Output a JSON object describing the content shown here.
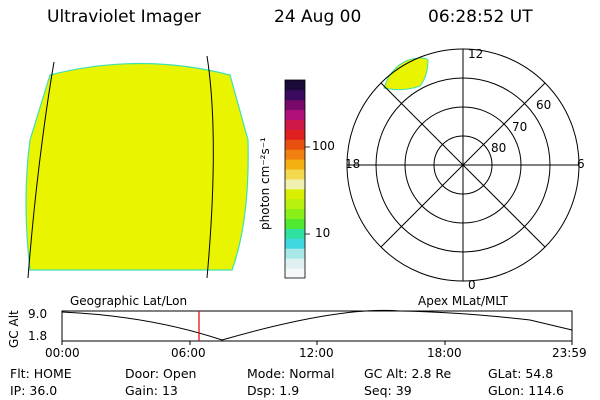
{
  "header": {
    "instrument": "Ultraviolet Imager",
    "date": "24 Aug 00",
    "time": "06:28:52 UT"
  },
  "colorbar": {
    "unit_label": "photon cm⁻²s⁻¹",
    "tick_labels": [
      "100",
      "10"
    ],
    "colors": [
      "#1a0a3a",
      "#3a0a5e",
      "#7a0a6a",
      "#b0107a",
      "#d01848",
      "#e02020",
      "#e85010",
      "#f08010",
      "#f4b010",
      "#f4d850",
      "#f0f0b0",
      "#d8f000",
      "#b8f010",
      "#88f018",
      "#50e830",
      "#30e0a0",
      "#40d8e0",
      "#a8e8e8",
      "#e0f0f0",
      "#f4f8f8"
    ]
  },
  "labels": {
    "geo_title": "Geographic Lat/Lon",
    "apex_title": "Apex MLat/MLT"
  },
  "polar": {
    "mlt_labels": [
      "12",
      "18",
      "6",
      "0"
    ],
    "lat_labels": [
      "60",
      "70",
      "80"
    ]
  },
  "timeline": {
    "ylabel": "GC Alt",
    "ytick_top": "9.0",
    "ytick_bottom": "1.8",
    "xtick_labels": [
      "00:00",
      "06:00",
      "12:00",
      "18:00",
      "23:59"
    ]
  },
  "status": {
    "row1": [
      {
        "label": "Flt:",
        "value": "HOME"
      },
      {
        "label": "Door:",
        "value": "Open"
      },
      {
        "label": "Mode:",
        "value": "Normal"
      },
      {
        "label": "GC Alt:",
        "value": "2.8 Re"
      },
      {
        "label": "GLat:",
        "value": "54.8"
      }
    ],
    "row2": [
      {
        "label": "IP:",
        "value": "36.0"
      },
      {
        "label": "Gain:",
        "value": "13"
      },
      {
        "label": "Dsp:",
        "value": "1.9"
      },
      {
        "label": "Seq:",
        "value": "39"
      },
      {
        "label": "GLon:",
        "value": "114.6"
      }
    ]
  },
  "colors": {
    "aurora_fill": "#e8f400",
    "aurora_edge": "#40e0b0",
    "marker": "#e00000"
  }
}
